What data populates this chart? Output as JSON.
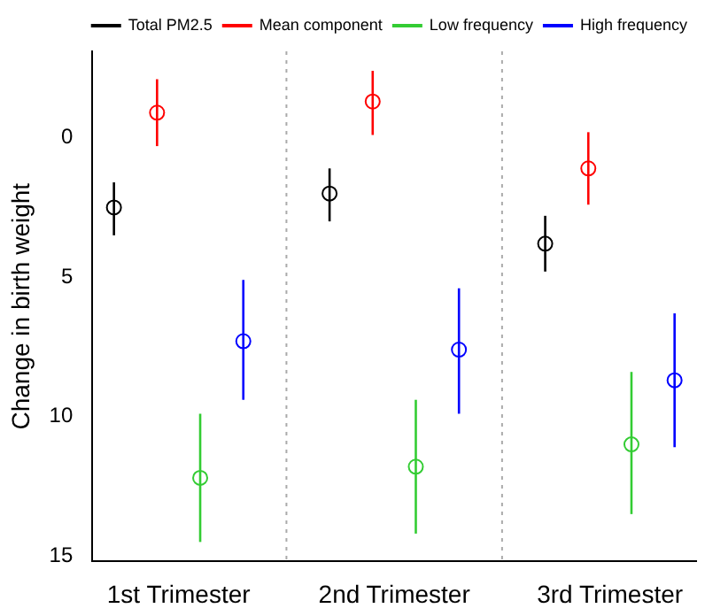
{
  "chart_data": {
    "type": "scatter",
    "ylabel": "Change in birth weight",
    "xlim": [
      0.6,
      3.4
    ],
    "xticks": [
      {
        "value": 1,
        "label": "1st Trimester"
      },
      {
        "value": 2,
        "label": "2nd Trimester"
      },
      {
        "value": 3,
        "label": "3rd Trimester"
      }
    ],
    "ylim": [
      15.2,
      -3.1
    ],
    "yticks": [
      0,
      5,
      10,
      15
    ],
    "series": [
      {
        "name": "Total PM2.5",
        "color": "#000000",
        "x": [
          0.7,
          1.7,
          2.7
        ],
        "values": [
          2.5,
          2.0,
          3.8
        ],
        "errors": [
          [
            1.6,
            3.5
          ],
          [
            1.1,
            3.0
          ],
          [
            2.8,
            4.8
          ]
        ]
      },
      {
        "name": "Mean component",
        "color": "#ff0000",
        "x": [
          0.9,
          1.9,
          2.9
        ],
        "values": [
          -0.9,
          -1.3,
          1.1
        ],
        "errors": [
          [
            -2.1,
            0.3
          ],
          [
            -2.4,
            -0.1
          ],
          [
            -0.2,
            2.4
          ]
        ]
      },
      {
        "name": "Low frequency",
        "color": "#33cc33",
        "x": [
          1.1,
          2.1,
          3.1
        ],
        "values": [
          12.2,
          11.8,
          11.0
        ],
        "errors": [
          [
            9.9,
            14.5
          ],
          [
            9.4,
            14.2
          ],
          [
            8.4,
            13.5
          ]
        ]
      },
      {
        "name": "High frequency",
        "color": "#0000ff",
        "x": [
          1.3,
          2.3,
          3.3
        ],
        "values": [
          7.3,
          7.6,
          8.7
        ],
        "errors": [
          [
            5.1,
            9.4
          ],
          [
            5.4,
            9.9
          ],
          [
            6.3,
            11.1
          ]
        ]
      }
    ],
    "ref_lines": [
      {
        "axis": "x",
        "value": 1.5,
        "color": "#aaaaaa",
        "line_style": "dotted"
      },
      {
        "axis": "x",
        "value": 2.5,
        "color": "#aaaaaa",
        "line_style": "dotted"
      }
    ],
    "legend": "top right",
    "marker": "circle",
    "grid": false
  }
}
